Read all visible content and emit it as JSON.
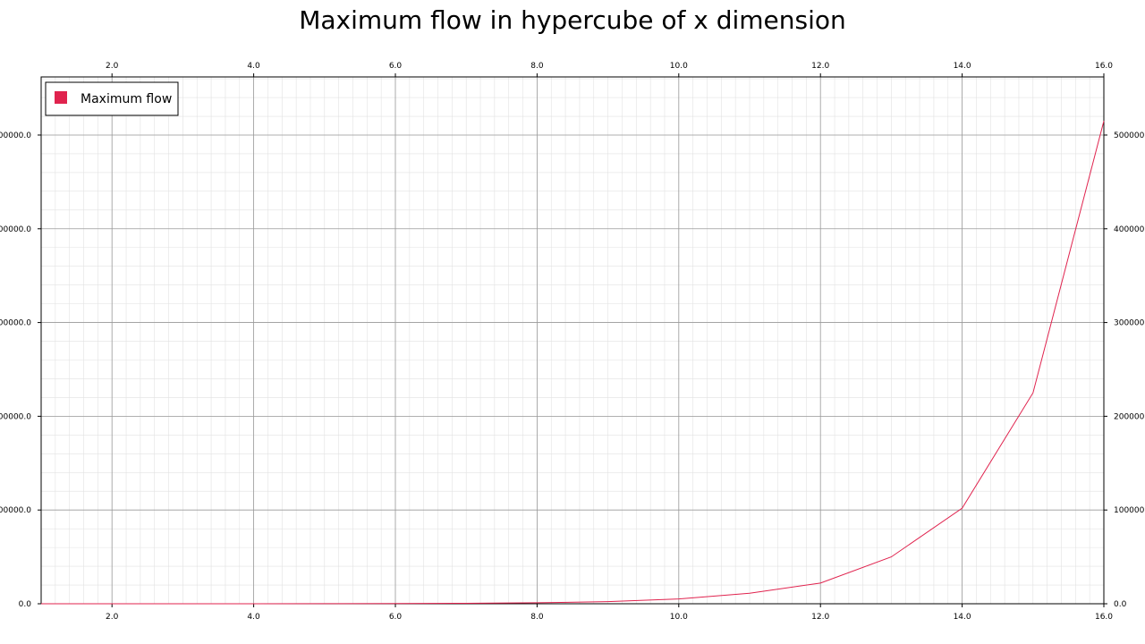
{
  "chart_data": {
    "type": "line",
    "title": "Maximum flow in hypercube of x dimension",
    "xlabel": "",
    "ylabel": "",
    "xlim": [
      1,
      16
    ],
    "ylim": [
      0,
      562000
    ],
    "grid": true,
    "minor_grid": true,
    "legend_position": "top-left",
    "mirror_axes": true,
    "x_ticks": [
      2,
      4,
      6,
      8,
      10,
      12,
      14,
      16
    ],
    "x_tick_labels": [
      "2.0",
      "4.0",
      "6.0",
      "8.0",
      "10.0",
      "12.0",
      "14.0",
      "16.0"
    ],
    "y_ticks": [
      0,
      100000,
      200000,
      300000,
      400000,
      500000
    ],
    "y_tick_labels": [
      "0.0",
      "100000.0",
      "200000.0",
      "300000.0",
      "400000.0",
      "500000.0"
    ],
    "series": [
      {
        "name": "Maximum flow",
        "color": "#e0234e",
        "x": [
          1,
          2,
          3,
          4,
          5,
          6,
          7,
          8,
          9,
          10,
          11,
          12,
          13,
          14,
          15,
          16
        ],
        "values": [
          1,
          4,
          12,
          32,
          80,
          192,
          448,
          1024,
          2304,
          5120,
          11264,
          22000,
          50000,
          102000,
          225000,
          515000
        ]
      }
    ]
  }
}
